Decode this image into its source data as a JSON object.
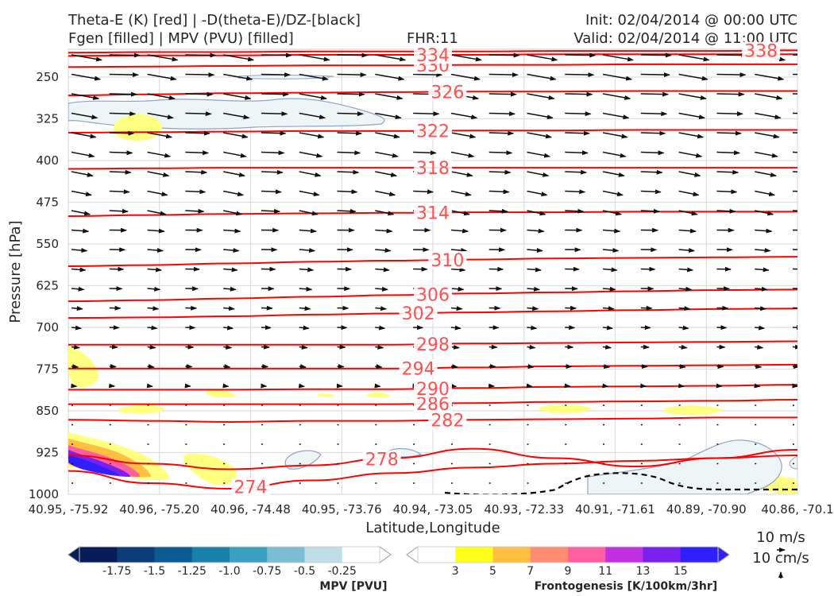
{
  "header": {
    "title_line1": "Theta-E (K) [red] | -D(theta-E)/DZ-[black]",
    "title_line2": "Fgen [filled] | MPV (PVU) [filled]",
    "fhr": "FHR:11",
    "init": "Init: 02/04/2014 @ 00:00 UTC",
    "valid": "Valid: 02/04/2014 @ 11:00 UTC"
  },
  "colors": {
    "theta_e": "#ff0000",
    "theta_e_label": "#ff5050",
    "wind": "#111111",
    "mpv_contour": "#8fa3c8",
    "mpv_fill": "#eef5f7",
    "fgen_3": "#ffff80",
    "fgen_5": "#ffc040",
    "fgen_7": "#ff8c70",
    "fgen_9": "#ff5fa0",
    "fgen_11": "#c030e0",
    "fgen_13": "#7a20f0",
    "fgen_15": "#3020ff"
  },
  "chart_data": {
    "type": "cross-section",
    "xlabel": "Latitude,Longitude",
    "ylabel": "Pressure [hPa]",
    "x_ticks": [
      "40.95, -75.92",
      "40.96, -75.20",
      "40.96, -74.48",
      "40.95, -73.76",
      "40.94, -73.05",
      "40.93, -72.33",
      "40.91, -71.61",
      "40.89, -70.90",
      "40.86, -70.1"
    ],
    "y_ticks": [
      "250",
      "325",
      "400",
      "475",
      "550",
      "625",
      "700",
      "775",
      "850",
      "925",
      "1000"
    ],
    "ylim": [
      1000,
      200
    ],
    "grid": true,
    "theta_e_contours": [
      {
        "value": 274,
        "label": "274",
        "p": [
          958,
          980,
          990,
          975,
          962,
          952,
          945,
          940,
          935,
          930
        ]
      },
      {
        "value": 278,
        "label": "278",
        "p": [
          930,
          945,
          955,
          948,
          935,
          918,
          935,
          950,
          935,
          920
        ]
      },
      {
        "value": 282,
        "label": "282",
        "p": [
          866,
          868,
          870,
          868,
          868,
          866,
          865,
          864,
          862,
          862
        ]
      },
      {
        "value": 286,
        "label": "286",
        "p": [
          838,
          838,
          838,
          838,
          838,
          836,
          834,
          833,
          832,
          830
        ]
      },
      {
        "value": 290,
        "label": "290",
        "p": [
          812,
          812,
          812,
          811,
          811,
          809,
          807,
          806,
          805,
          803
        ]
      },
      {
        "value": 294,
        "label": "294",
        "p": [
          774,
          774,
          774,
          774,
          774,
          772,
          770,
          769,
          768,
          767
        ]
      },
      {
        "value": 298,
        "label": "298",
        "p": [
          731,
          731,
          731,
          731,
          731,
          729,
          728,
          727,
          726,
          725
        ]
      },
      {
        "value": 302,
        "label": "302",
        "p": [
          683,
          682,
          680,
          677,
          675,
          673,
          671,
          669,
          667,
          666
        ]
      },
      {
        "value": 306,
        "label": "306",
        "p": [
          653,
          651,
          648,
          645,
          642,
          639,
          637,
          635,
          633,
          632
        ]
      },
      {
        "value": 310,
        "label": "310",
        "p": [
          590,
          588,
          585,
          582,
          580,
          578,
          576,
          575,
          574,
          573
        ]
      },
      {
        "value": 314,
        "label": "314",
        "p": [
          500,
          498,
          496,
          495,
          494,
          493,
          493,
          492,
          492,
          492
        ]
      },
      {
        "value": 318,
        "label": "318",
        "p": [
          415,
          414,
          413,
          413,
          413,
          413,
          413,
          413,
          413,
          413
        ]
      },
      {
        "value": 322,
        "label": "322",
        "p": [
          350,
          349,
          348,
          347,
          347,
          346,
          346,
          345,
          345,
          345
        ]
      },
      {
        "value": 326,
        "label": "326",
        "p": [
          283,
          281,
          279,
          278,
          277,
          276,
          276,
          275,
          275,
          275
        ]
      },
      {
        "value": 330,
        "label": "330",
        "p": [
          232,
          231,
          230,
          229,
          229,
          228,
          228,
          227,
          227,
          227
        ]
      },
      {
        "value": 334,
        "label": "334",
        "p": [
          212,
          211,
          211,
          210,
          210,
          210,
          209,
          209,
          209,
          209
        ]
      },
      {
        "value": 338,
        "label": "338",
        "p": [
          206,
          205,
          205,
          204,
          204,
          204,
          203,
          203,
          203,
          202
        ]
      }
    ],
    "mpv_colorbar": {
      "label": "MPV [PVU]",
      "ticks": [
        "-1.75",
        "-1.5",
        "-1.25",
        "-1.0",
        "-0.75",
        "-0.5",
        "-0.25"
      ],
      "colors": [
        "#081d58",
        "#0b3d78",
        "#0c5a92",
        "#1980aa",
        "#3a9fc1",
        "#7bbdd3",
        "#bfdde8",
        "#ffffff"
      ]
    },
    "fgen_colorbar": {
      "label": "Frontogenesis [K/100km/3hr]",
      "ticks": [
        "3",
        "5",
        "7",
        "9",
        "11",
        "13",
        "15"
      ],
      "colors": [
        "#ffffff",
        "#ffff1a",
        "#ffc040",
        "#ff8c70",
        "#ff5fa0",
        "#c030e0",
        "#7a20f0",
        "#3020ff"
      ]
    },
    "wind_key": {
      "horizontal": "10 m/s",
      "vertical": "10 cm/s"
    }
  }
}
